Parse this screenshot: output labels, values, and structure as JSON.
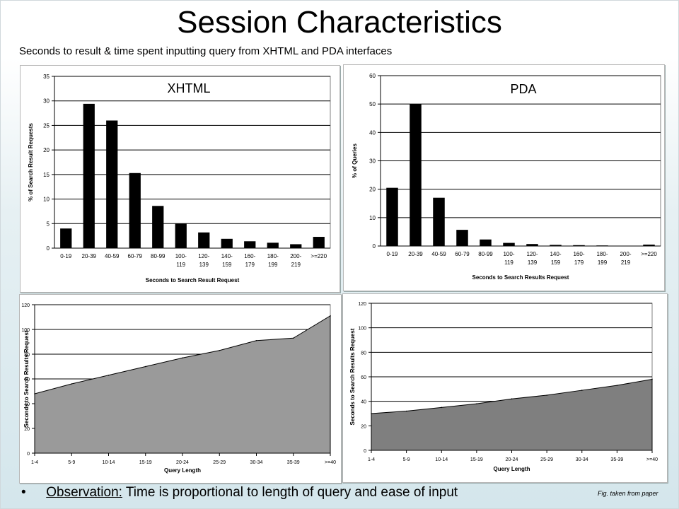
{
  "title": "Session Characteristics",
  "subtitle": "Seconds to result & time spent inputting query from XHTML and PDA interfaces",
  "footer": {
    "bullet": "•",
    "observation_label": "Observation:",
    "observation_text": " Time is proportional to length of query and ease of input",
    "fig_note": "Fig. taken from paper"
  },
  "chart_data": [
    {
      "type": "bar",
      "title": "XHTML",
      "xlabel": "Seconds to Search Result Request",
      "ylabel": "% of Search Result Requests",
      "categories": [
        "0-19",
        "20-39",
        "40-59",
        "60-79",
        "80-99",
        "100-119",
        "120-139",
        "140-159",
        "160-179",
        "180-199",
        "200-219",
        ">=220"
      ],
      "tick_labels": [
        [
          "0-19"
        ],
        [
          "20-39"
        ],
        [
          "40-59"
        ],
        [
          "60-79"
        ],
        [
          "80-99"
        ],
        [
          "100-",
          "119"
        ],
        [
          "120-",
          "139"
        ],
        [
          "140-",
          "159"
        ],
        [
          "160-",
          "179"
        ],
        [
          "180-",
          "199"
        ],
        [
          "200-",
          "219"
        ],
        [
          ">=220"
        ]
      ],
      "values": [
        4,
        29.4,
        26,
        15.3,
        8.6,
        5,
        3.2,
        1.9,
        1.4,
        1.1,
        0.8,
        2.3
      ],
      "ylim": [
        0,
        35
      ],
      "yticks": [
        0,
        5,
        10,
        15,
        20,
        25,
        30,
        35
      ],
      "grid": true
    },
    {
      "type": "bar",
      "title": "PDA",
      "xlabel": "Seconds to Search Results Request",
      "ylabel": "% of Queries",
      "categories": [
        "0-19",
        "20-39",
        "40-59",
        "60-79",
        "80-99",
        "100-119",
        "120-139",
        "140-159",
        "160-179",
        "180-199",
        "200-219",
        ">=220"
      ],
      "tick_labels": [
        [
          "0-19"
        ],
        [
          "20-39"
        ],
        [
          "40-59"
        ],
        [
          "60-79"
        ],
        [
          "80-99"
        ],
        [
          "100-",
          "119"
        ],
        [
          "120-",
          "139"
        ],
        [
          "140-",
          "159"
        ],
        [
          "160-",
          "179"
        ],
        [
          "180-",
          "199"
        ],
        [
          "200-",
          "219"
        ],
        [
          ">=220"
        ]
      ],
      "values": [
        20.5,
        50,
        17,
        5.7,
        2.3,
        1.1,
        0.7,
        0.4,
        0.3,
        0.2,
        0,
        0.5
      ],
      "ylim": [
        0,
        60
      ],
      "yticks": [
        0,
        10,
        20,
        30,
        40,
        50,
        60
      ],
      "grid": true
    },
    {
      "type": "area",
      "title": "",
      "xlabel": "Query Length",
      "ylabel": "Seconds to Search Results Request",
      "categories": [
        "1-4",
        "5-9",
        "10-14",
        "15-19",
        "20-24",
        "25-29",
        "30-34",
        "35-39",
        ">=40"
      ],
      "values": [
        48,
        56,
        63,
        70,
        77,
        83,
        91,
        93,
        111
      ],
      "ylim": [
        0,
        120
      ],
      "yticks": [
        0,
        20,
        40,
        60,
        80,
        100,
        120
      ],
      "fill_color": "#9a9a9a",
      "grid": true
    },
    {
      "type": "area",
      "title": "",
      "xlabel": "Query Length",
      "ylabel": "Seconds to Search Results Request",
      "categories": [
        "1-4",
        "5-9",
        "10-14",
        "15-19",
        "20-24",
        "25-29",
        "30-34",
        "35-39",
        ">=40"
      ],
      "values": [
        30,
        32,
        35,
        38,
        42,
        45,
        49,
        53,
        58
      ],
      "ylim": [
        0,
        120
      ],
      "yticks": [
        0,
        20,
        40,
        60,
        80,
        100,
        120
      ],
      "fill_color": "#7f7f7f",
      "grid": true
    }
  ]
}
